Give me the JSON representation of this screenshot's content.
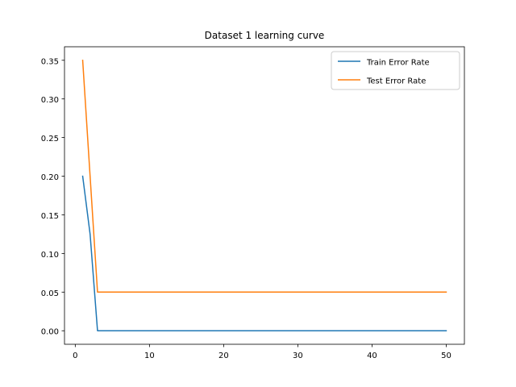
{
  "chart_data": {
    "type": "line",
    "title": "Dataset 1 learning curve",
    "xlabel": "",
    "ylabel": "",
    "xlim": [
      -1.45,
      52.45
    ],
    "ylim": [
      -0.0175,
      0.3675
    ],
    "x_ticks": [
      0,
      10,
      20,
      30,
      40,
      50
    ],
    "y_ticks": [
      0.0,
      0.05,
      0.1,
      0.15,
      0.2,
      0.25,
      0.3,
      0.35
    ],
    "y_tick_labels": [
      "0.00",
      "0.05",
      "0.10",
      "0.15",
      "0.20",
      "0.25",
      "0.30",
      "0.35"
    ],
    "x_tick_labels": [
      "0",
      "10",
      "20",
      "30",
      "40",
      "50"
    ],
    "grid": false,
    "legend_position": "upper right",
    "series": [
      {
        "name": "Train Error Rate",
        "color": "#1f77b4",
        "x": [
          1,
          2,
          3,
          4,
          5,
          6,
          7,
          8,
          9,
          10,
          11,
          12,
          13,
          14,
          15,
          16,
          17,
          18,
          19,
          20,
          21,
          22,
          23,
          24,
          25,
          26,
          27,
          28,
          29,
          30,
          31,
          32,
          33,
          34,
          35,
          36,
          37,
          38,
          39,
          40,
          41,
          42,
          43,
          44,
          45,
          46,
          47,
          48,
          49,
          50
        ],
        "y": [
          0.2,
          0.125,
          0.0,
          0.0,
          0.0,
          0.0,
          0.0,
          0.0,
          0.0,
          0.0,
          0.0,
          0.0,
          0.0,
          0.0,
          0.0,
          0.0,
          0.0,
          0.0,
          0.0,
          0.0,
          0.0,
          0.0,
          0.0,
          0.0,
          0.0,
          0.0,
          0.0,
          0.0,
          0.0,
          0.0,
          0.0,
          0.0,
          0.0,
          0.0,
          0.0,
          0.0,
          0.0,
          0.0,
          0.0,
          0.0,
          0.0,
          0.0,
          0.0,
          0.0,
          0.0,
          0.0,
          0.0,
          0.0,
          0.0,
          0.0
        ]
      },
      {
        "name": "Test Error Rate",
        "color": "#ff7f0e",
        "x": [
          1,
          2,
          3,
          4,
          5,
          6,
          7,
          8,
          9,
          10,
          11,
          12,
          13,
          14,
          15,
          16,
          17,
          18,
          19,
          20,
          21,
          22,
          23,
          24,
          25,
          26,
          27,
          28,
          29,
          30,
          31,
          32,
          33,
          34,
          35,
          36,
          37,
          38,
          39,
          40,
          41,
          42,
          43,
          44,
          45,
          46,
          47,
          48,
          49,
          50
        ],
        "y": [
          0.35,
          0.2,
          0.05,
          0.05,
          0.05,
          0.05,
          0.05,
          0.05,
          0.05,
          0.05,
          0.05,
          0.05,
          0.05,
          0.05,
          0.05,
          0.05,
          0.05,
          0.05,
          0.05,
          0.05,
          0.05,
          0.05,
          0.05,
          0.05,
          0.05,
          0.05,
          0.05,
          0.05,
          0.05,
          0.05,
          0.05,
          0.05,
          0.05,
          0.05,
          0.05,
          0.05,
          0.05,
          0.05,
          0.05,
          0.05,
          0.05,
          0.05,
          0.05,
          0.05,
          0.05,
          0.05,
          0.05,
          0.05,
          0.05,
          0.05
        ]
      }
    ]
  }
}
